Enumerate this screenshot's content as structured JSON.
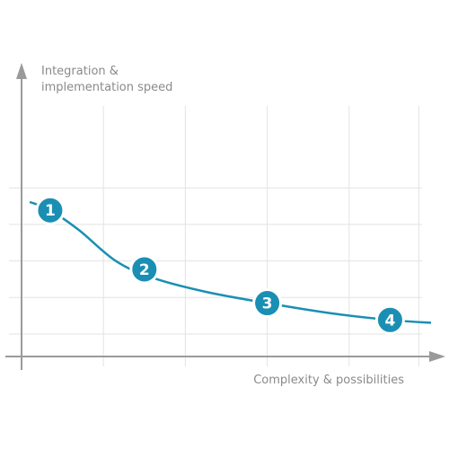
{
  "chart_data": {
    "type": "line",
    "xlabel": "Complexity & possibilities",
    "ylabel_lines": [
      "Integration &",
      "implementation speed"
    ],
    "grid": true,
    "axis_color": "#9a9a9a",
    "grid_color": "#e3e3e3",
    "line_color": "#1a8fb3",
    "marker_color": "#1a8fb3",
    "xlim": [
      0,
      10
    ],
    "ylim": [
      0,
      10
    ],
    "x_gridlines": [
      2,
      4,
      6,
      8,
      9.7
    ],
    "y_gridlines": [
      0.8,
      2.1,
      3.4,
      4.7,
      6.0
    ],
    "curve": {
      "x": [
        0.2,
        0.7,
        1.4,
        2.3,
        3.2,
        4.5,
        6.0,
        7.5,
        9.0,
        10.0
      ],
      "y": [
        5.5,
        5.2,
        4.5,
        3.4,
        2.8,
        2.3,
        1.9,
        1.55,
        1.3,
        1.2
      ]
    },
    "markers": [
      {
        "label": "1",
        "x": 0.7,
        "y": 5.2
      },
      {
        "label": "2",
        "x": 3.0,
        "y": 3.1
      },
      {
        "label": "3",
        "x": 6.0,
        "y": 1.9
      },
      {
        "label": "4",
        "x": 9.0,
        "y": 1.3
      }
    ]
  }
}
